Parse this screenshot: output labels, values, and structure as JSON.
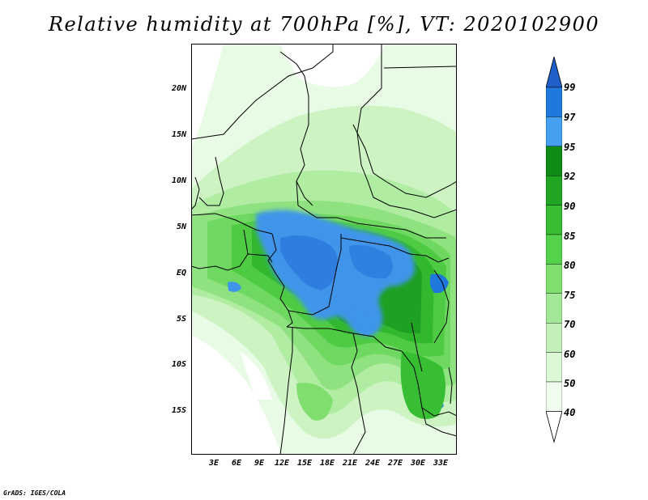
{
  "title": "Relative humidity at 700hPa [%], VT: 2020102900",
  "credit": "GrADS: IGES/COLA",
  "lat_labels": [
    "20N",
    "15N",
    "10N",
    "5N",
    "EQ",
    "5S",
    "10S",
    "15S"
  ],
  "lon_labels": [
    "3E",
    "6E",
    "9E",
    "12E",
    "15E",
    "18E",
    "21E",
    "24E",
    "27E",
    "30E",
    "33E"
  ],
  "colorbar": {
    "levels": [
      "99",
      "97",
      "95",
      "92",
      "90",
      "85",
      "80",
      "75",
      "70",
      "60",
      "50",
      "40"
    ],
    "colors": [
      "#1e5fc8",
      "#1f78dc",
      "#46a0f0",
      "#0e8c16",
      "#20a623",
      "#37be32",
      "#55d24c",
      "#7fde6e",
      "#a3e898",
      "#c2f0b8",
      "#dcf8d4",
      "#f0fdee",
      "#ffffff"
    ]
  }
}
